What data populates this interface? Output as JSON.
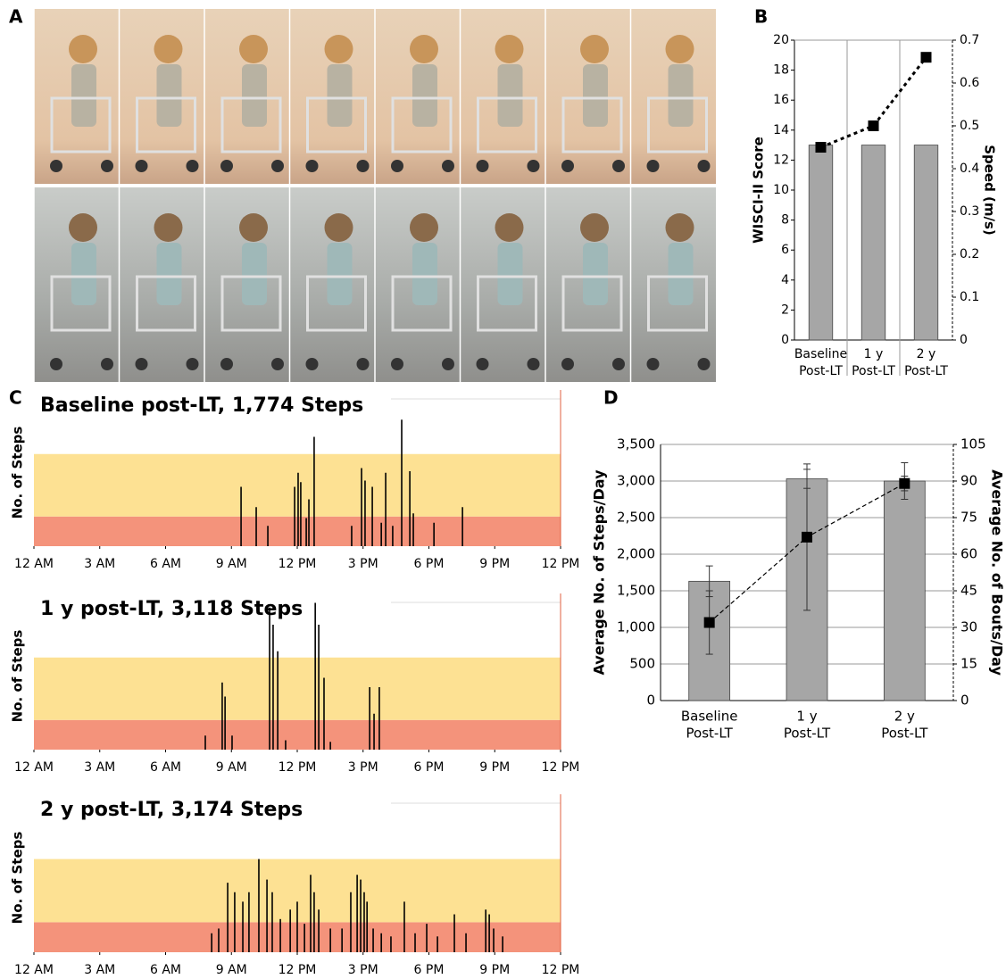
{
  "panel_labels": [
    "A",
    "B",
    "C",
    "D"
  ],
  "chart_data": [
    {
      "type": "bar",
      "ylabel": "WISCI-II Score",
      "y2label": "Speed (m/s)",
      "categories": [
        [
          "Baseline",
          "Post-LT"
        ],
        [
          "1 y",
          "Post-LT"
        ],
        [
          "2 y",
          "Post-LT"
        ]
      ],
      "series": [
        {
          "values": [
            13,
            13,
            13
          ],
          "color": "#a6a6a6"
        },
        {
          "type": "line",
          "axis": "y2",
          "values": [
            0.45,
            0.5,
            0.66
          ],
          "color": "#000000",
          "dashed": true
        }
      ],
      "ylim": [
        0,
        20
      ],
      "yticks": [
        0,
        2,
        4,
        6,
        8,
        10,
        12,
        14,
        16,
        18,
        20
      ],
      "y2lim": [
        0,
        0.7
      ],
      "y2ticks": [
        0,
        0.1,
        0.2,
        0.3,
        0.4,
        0.5,
        0.6,
        0.7
      ],
      "grid": false,
      "category_dividers": true
    },
    {
      "type": "spike",
      "title": "Baseline post-LT, 1,774 Steps",
      "ylabel": "No. of Steps",
      "x": [
        9.44,
        10.13,
        10.66,
        11.88,
        12.04,
        12.16,
        12.41,
        12.53,
        12.77,
        14.48,
        14.93,
        15.09,
        15.42,
        15.83,
        16.03,
        16.35,
        16.76,
        17.13,
        17.29,
        18.23,
        19.53
      ],
      "values": [
        38,
        25,
        13,
        38,
        47,
        41,
        18,
        30,
        70,
        13,
        50,
        42,
        38,
        15,
        47,
        13,
        81,
        48,
        21,
        15,
        25
      ],
      "color": "#000000",
      "bands": [
        {
          "from": 0,
          "to": 19,
          "color": "#f4937b"
        },
        {
          "from": 19,
          "to": 59,
          "color": "#fde193"
        }
      ],
      "xlim": [
        0,
        24
      ],
      "ylim": [
        0,
        100
      ],
      "xticks": [
        {
          "value": 0,
          "label": "12 AM"
        },
        {
          "value": 3,
          "label": "3 AM"
        },
        {
          "value": 6,
          "label": "6 AM"
        },
        {
          "value": 9,
          "label": "9 AM"
        },
        {
          "value": 12,
          "label": "12 PM"
        },
        {
          "value": 15,
          "label": "3 PM"
        },
        {
          "value": 18,
          "label": "6 PM"
        },
        {
          "value": 21,
          "label": "9 PM"
        },
        {
          "value": 24,
          "label": "12 PM"
        }
      ]
    },
    {
      "type": "spike",
      "title": "1 y post-LT, 3,118 Steps",
      "ylabel": "No. of Steps",
      "x": [
        7.81,
        8.58,
        8.71,
        9.03,
        10.74,
        10.9,
        11.11,
        11.47,
        12.82,
        12.98,
        13.22,
        13.51,
        15.3,
        15.5,
        15.74
      ],
      "values": [
        9,
        43,
        34,
        9,
        91,
        80,
        63,
        6,
        94,
        80,
        46,
        5,
        40,
        23,
        40
      ],
      "color": "#000000",
      "bands": [
        {
          "from": 0,
          "to": 19,
          "color": "#f4937b"
        },
        {
          "from": 19,
          "to": 59,
          "color": "#fde193"
        }
      ],
      "xlim": [
        0,
        24
      ],
      "ylim": [
        0,
        100
      ],
      "xticks": [
        {
          "value": 0,
          "label": "12 AM"
        },
        {
          "value": 3,
          "label": "3 AM"
        },
        {
          "value": 6,
          "label": "6 AM"
        },
        {
          "value": 9,
          "label": "9 AM"
        },
        {
          "value": 12,
          "label": "12 PM"
        },
        {
          "value": 15,
          "label": "3 PM"
        },
        {
          "value": 18,
          "label": "6 PM"
        },
        {
          "value": 21,
          "label": "9 PM"
        },
        {
          "value": 24,
          "label": "12 PM"
        }
      ]
    },
    {
      "type": "spike",
      "title": "2 y post-LT, 3,174 Steps",
      "ylabel": "No. of Steps",
      "x": [
        8.1,
        8.42,
        8.83,
        9.15,
        9.52,
        9.8,
        10.25,
        10.62,
        10.86,
        11.23,
        11.68,
        12.0,
        12.33,
        12.61,
        12.77,
        12.98,
        13.51,
        14.04,
        14.44,
        14.73,
        14.89,
        15.05,
        15.18,
        15.46,
        15.83,
        16.27,
        16.88,
        17.37,
        17.9,
        18.39,
        19.16,
        19.69,
        20.59,
        20.75,
        20.95,
        21.36
      ],
      "values": [
        12,
        15,
        44,
        38,
        32,
        38,
        59,
        46,
        38,
        21,
        27,
        32,
        18,
        49,
        38,
        27,
        15,
        15,
        38,
        49,
        46,
        38,
        32,
        15,
        12,
        10,
        32,
        12,
        18,
        10,
        24,
        12,
        27,
        24,
        15,
        10
      ],
      "color": "#000000",
      "bands": [
        {
          "from": 0,
          "to": 19,
          "color": "#f4937b"
        },
        {
          "from": 19,
          "to": 59,
          "color": "#fde193"
        }
      ],
      "xlim": [
        0,
        24
      ],
      "ylim": [
        0,
        100
      ],
      "xticks": [
        {
          "value": 0,
          "label": "12 AM"
        },
        {
          "value": 3,
          "label": "3 AM"
        },
        {
          "value": 6,
          "label": "6 AM"
        },
        {
          "value": 9,
          "label": "9 AM"
        },
        {
          "value": 12,
          "label": "12 PM"
        },
        {
          "value": 15,
          "label": "3 PM"
        },
        {
          "value": 18,
          "label": "6 PM"
        },
        {
          "value": 21,
          "label": "9 PM"
        },
        {
          "value": 24,
          "label": "12 PM"
        }
      ]
    },
    {
      "type": "bar",
      "ylabel": "Average No. of Steps/Day",
      "y2label": "Average No. of Bouts/Day",
      "categories": [
        [
          "Baseline",
          "Post-LT"
        ],
        [
          "1 y",
          "Post-LT"
        ],
        [
          "2 y",
          "Post-LT"
        ]
      ],
      "series": [
        {
          "values": [
            1630,
            3030,
            3000
          ],
          "errors": [
            210,
            130,
            250
          ],
          "color": "#a6a6a6"
        },
        {
          "type": "line",
          "axis": "y2",
          "values": [
            32,
            67,
            89
          ],
          "errors": [
            13,
            30,
            3
          ],
          "color": "#000000",
          "dashed": true
        }
      ],
      "ylim": [
        0,
        3500
      ],
      "yticks": [
        0,
        500,
        {
          "value": 1000,
          "label": "1,000"
        },
        {
          "value": 1500,
          "label": "1,500"
        },
        {
          "value": 2000,
          "label": "2,000"
        },
        {
          "value": 2500,
          "label": "2,500"
        },
        {
          "value": 3000,
          "label": "3,000"
        },
        {
          "value": 3500,
          "label": "3,500"
        }
      ],
      "y2lim": [
        0,
        105
      ],
      "y2ticks": [
        0,
        15,
        30,
        45,
        60,
        75,
        90,
        105
      ],
      "grid": true,
      "category_dividers": false
    }
  ]
}
